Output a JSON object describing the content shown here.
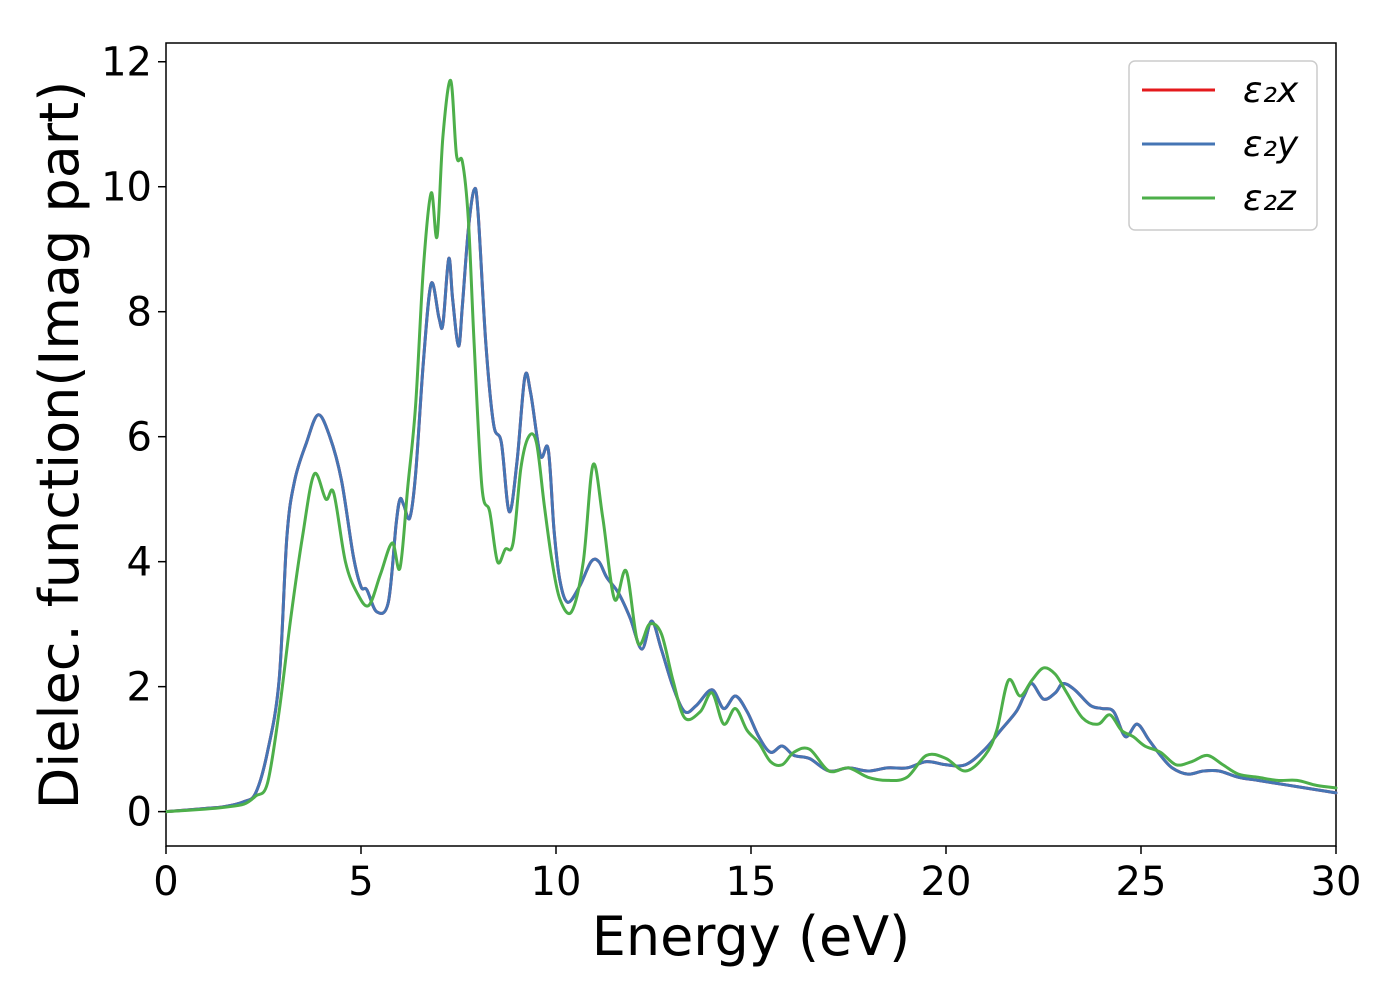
{
  "chart_data": {
    "type": "line",
    "xlabel": "Energy (eV)",
    "ylabel": "Dielec. function(Imag part)",
    "xlim": [
      0,
      30
    ],
    "ylim": [
      -0.55,
      12.3
    ],
    "xticks": [
      0,
      5,
      10,
      15,
      20,
      25,
      30
    ],
    "yticks": [
      0,
      2,
      4,
      6,
      8,
      10,
      12
    ],
    "grid": false,
    "legend": {
      "position": "top-right",
      "entries": [
        "ε₂x",
        "ε₂y",
        "ε₂z"
      ]
    },
    "series": [
      {
        "name": "ε₂x",
        "color": "#e41a1c",
        "x": [
          0,
          1,
          1.5,
          2,
          2.3,
          2.6,
          2.9,
          3.1,
          3.3,
          3.6,
          3.9,
          4.2,
          4.5,
          4.8,
          5.0,
          5.15,
          5.4,
          5.7,
          5.9,
          6.0,
          6.1,
          6.25,
          6.4,
          6.6,
          6.8,
          7.0,
          7.1,
          7.25,
          7.35,
          7.5,
          7.6,
          7.75,
          7.9,
          8.0,
          8.2,
          8.4,
          8.6,
          8.8,
          9.0,
          9.2,
          9.35,
          9.6,
          9.8,
          9.95,
          10.1,
          10.3,
          10.6,
          10.9,
          11.1,
          11.3,
          11.6,
          11.9,
          12.2,
          12.45,
          12.7,
          13.0,
          13.3,
          13.6,
          14.0,
          14.3,
          14.6,
          14.9,
          15.2,
          15.5,
          15.8,
          16.1,
          16.5,
          17.0,
          17.5,
          18.0,
          18.5,
          19.0,
          19.5,
          20.0,
          20.5,
          21.0,
          21.4,
          21.8,
          22.0,
          22.2,
          22.5,
          22.8,
          23.0,
          23.3,
          23.7,
          24.0,
          24.3,
          24.6,
          24.9,
          25.2,
          25.5,
          25.8,
          26.2,
          26.6,
          27.0,
          27.5,
          28.0,
          28.5,
          29.0,
          29.5,
          30.0
        ],
        "y": [
          0.0,
          0.05,
          0.08,
          0.16,
          0.3,
          0.95,
          2.1,
          4.4,
          5.3,
          5.9,
          6.35,
          6.0,
          5.3,
          4.1,
          3.6,
          3.55,
          3.2,
          3.35,
          4.6,
          5.0,
          4.9,
          4.7,
          5.4,
          7.2,
          8.45,
          7.9,
          7.8,
          8.85,
          8.2,
          7.45,
          8.1,
          9.3,
          9.95,
          9.6,
          7.5,
          6.2,
          5.9,
          4.8,
          5.6,
          6.95,
          6.7,
          5.7,
          5.8,
          4.5,
          3.7,
          3.35,
          3.6,
          4.0,
          4.0,
          3.75,
          3.5,
          3.1,
          2.6,
          3.05,
          2.6,
          2.0,
          1.6,
          1.7,
          1.95,
          1.65,
          1.85,
          1.6,
          1.2,
          0.95,
          1.05,
          0.9,
          0.85,
          0.65,
          0.7,
          0.65,
          0.7,
          0.7,
          0.8,
          0.75,
          0.75,
          1.0,
          1.3,
          1.6,
          1.85,
          2.05,
          1.8,
          1.9,
          2.05,
          1.95,
          1.7,
          1.65,
          1.6,
          1.2,
          1.4,
          1.15,
          0.9,
          0.7,
          0.6,
          0.65,
          0.65,
          0.55,
          0.5,
          0.45,
          0.4,
          0.35,
          0.3
        ]
      },
      {
        "name": "ε₂y",
        "color": "#4575b4",
        "x": [
          0,
          1,
          1.5,
          2,
          2.3,
          2.6,
          2.9,
          3.1,
          3.3,
          3.6,
          3.9,
          4.2,
          4.5,
          4.8,
          5.0,
          5.15,
          5.4,
          5.7,
          5.9,
          6.0,
          6.1,
          6.25,
          6.4,
          6.6,
          6.8,
          7.0,
          7.1,
          7.25,
          7.35,
          7.5,
          7.6,
          7.75,
          7.9,
          8.0,
          8.2,
          8.4,
          8.6,
          8.8,
          9.0,
          9.2,
          9.35,
          9.6,
          9.8,
          9.95,
          10.1,
          10.3,
          10.6,
          10.9,
          11.1,
          11.3,
          11.6,
          11.9,
          12.2,
          12.45,
          12.7,
          13.0,
          13.3,
          13.6,
          14.0,
          14.3,
          14.6,
          14.9,
          15.2,
          15.5,
          15.8,
          16.1,
          16.5,
          17.0,
          17.5,
          18.0,
          18.5,
          19.0,
          19.5,
          20.0,
          20.5,
          21.0,
          21.4,
          21.8,
          22.0,
          22.2,
          22.5,
          22.8,
          23.0,
          23.3,
          23.7,
          24.0,
          24.3,
          24.6,
          24.9,
          25.2,
          25.5,
          25.8,
          26.2,
          26.6,
          27.0,
          27.5,
          28.0,
          28.5,
          29.0,
          29.5,
          30.0
        ],
        "y": [
          0.0,
          0.05,
          0.08,
          0.16,
          0.3,
          0.95,
          2.1,
          4.4,
          5.3,
          5.9,
          6.35,
          6.0,
          5.3,
          4.1,
          3.6,
          3.55,
          3.2,
          3.35,
          4.6,
          5.0,
          4.9,
          4.7,
          5.4,
          7.2,
          8.45,
          7.9,
          7.8,
          8.85,
          8.2,
          7.45,
          8.1,
          9.3,
          9.95,
          9.6,
          7.5,
          6.2,
          5.9,
          4.8,
          5.6,
          6.95,
          6.7,
          5.7,
          5.8,
          4.5,
          3.7,
          3.35,
          3.6,
          4.0,
          4.0,
          3.75,
          3.5,
          3.1,
          2.6,
          3.05,
          2.6,
          2.0,
          1.6,
          1.7,
          1.95,
          1.65,
          1.85,
          1.6,
          1.2,
          0.95,
          1.05,
          0.9,
          0.85,
          0.65,
          0.7,
          0.65,
          0.7,
          0.7,
          0.8,
          0.75,
          0.75,
          1.0,
          1.3,
          1.6,
          1.85,
          2.05,
          1.8,
          1.9,
          2.05,
          1.95,
          1.7,
          1.65,
          1.6,
          1.2,
          1.4,
          1.15,
          0.9,
          0.7,
          0.6,
          0.65,
          0.65,
          0.55,
          0.5,
          0.45,
          0.4,
          0.35,
          0.3
        ]
      },
      {
        "name": "ε₂z",
        "color": "#4daf4a",
        "x": [
          0,
          1,
          1.5,
          2,
          2.3,
          2.6,
          2.9,
          3.2,
          3.5,
          3.8,
          4.1,
          4.3,
          4.6,
          4.9,
          5.2,
          5.5,
          5.8,
          6.0,
          6.2,
          6.4,
          6.6,
          6.8,
          6.95,
          7.1,
          7.3,
          7.45,
          7.6,
          7.75,
          7.9,
          8.1,
          8.3,
          8.5,
          8.7,
          8.9,
          9.1,
          9.3,
          9.5,
          9.7,
          9.9,
          10.1,
          10.4,
          10.7,
          10.95,
          11.2,
          11.5,
          11.8,
          12.1,
          12.4,
          12.7,
          13.0,
          13.3,
          13.7,
          14.0,
          14.3,
          14.6,
          14.9,
          15.2,
          15.5,
          15.8,
          16.1,
          16.5,
          17.0,
          17.5,
          18.0,
          18.5,
          19.0,
          19.5,
          20.0,
          20.5,
          21.0,
          21.3,
          21.6,
          21.9,
          22.2,
          22.5,
          22.8,
          23.1,
          23.5,
          23.9,
          24.2,
          24.5,
          24.8,
          25.1,
          25.5,
          25.9,
          26.3,
          26.7,
          27.1,
          27.5,
          28.0,
          28.5,
          29.0,
          29.5,
          30.0
        ],
        "y": [
          0.0,
          0.04,
          0.07,
          0.12,
          0.25,
          0.45,
          1.6,
          3.1,
          4.4,
          5.4,
          5.0,
          5.1,
          4.0,
          3.5,
          3.3,
          3.8,
          4.3,
          3.9,
          5.2,
          6.5,
          8.7,
          9.9,
          9.2,
          10.8,
          11.7,
          10.5,
          10.4,
          9.5,
          7.5,
          5.2,
          4.8,
          4.0,
          4.2,
          4.3,
          5.5,
          6.0,
          5.9,
          4.9,
          4.0,
          3.4,
          3.2,
          4.0,
          5.55,
          4.7,
          3.4,
          3.85,
          2.7,
          3.0,
          2.85,
          2.1,
          1.5,
          1.6,
          1.9,
          1.4,
          1.65,
          1.3,
          1.1,
          0.8,
          0.75,
          0.95,
          1.0,
          0.65,
          0.7,
          0.55,
          0.5,
          0.55,
          0.9,
          0.85,
          0.65,
          0.9,
          1.3,
          2.1,
          1.85,
          2.1,
          2.3,
          2.2,
          1.9,
          1.5,
          1.4,
          1.55,
          1.3,
          1.2,
          1.05,
          0.95,
          0.75,
          0.8,
          0.9,
          0.75,
          0.6,
          0.55,
          0.5,
          0.5,
          0.42,
          0.38
        ]
      }
    ]
  }
}
